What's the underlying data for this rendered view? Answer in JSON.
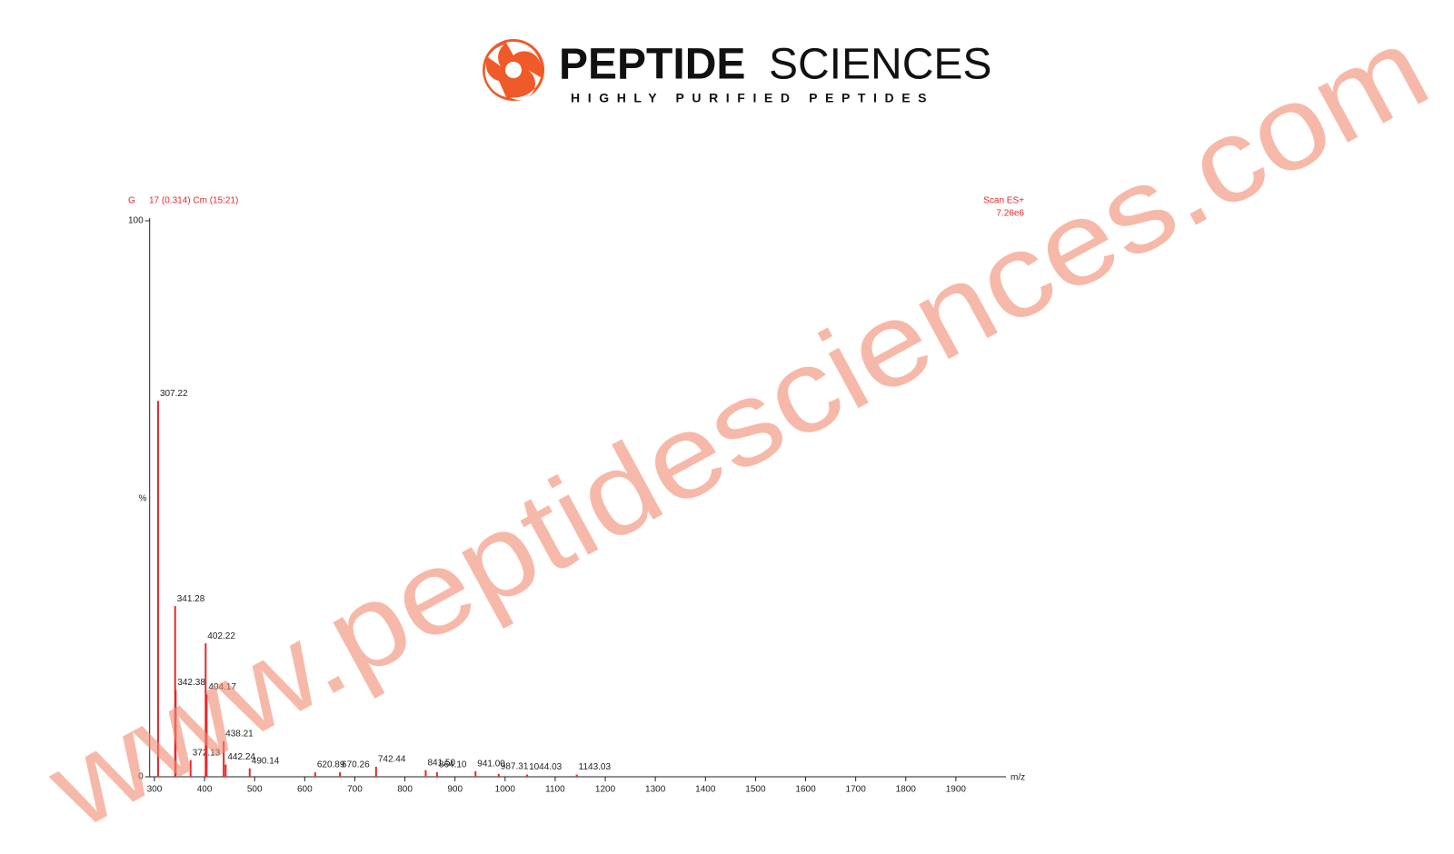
{
  "logo": {
    "brand_bold": "PEPTIDE",
    "brand_light": "SCIENCES",
    "tagline": "HIGHLY PURIFIED PEPTIDES"
  },
  "watermark": "www.peptidesciences.com",
  "chart_data": {
    "type": "stem",
    "sample_label": "G",
    "title": "17 (0.314) Cm (15:21)",
    "scan": "Scan ES+",
    "intensity": "7.26e6",
    "xlabel": "m/z",
    "ylabel": "%",
    "color": "#e8262b",
    "x": [
      307.22,
      341.28,
      342.38,
      372.13,
      402.22,
      404.17,
      438.21,
      442.24,
      490.14,
      620.89,
      670.26,
      742.44,
      841.5,
      864.1,
      941.0,
      987.31,
      1044.03,
      1143.03
    ],
    "x_labels": [
      "307.22",
      "341.28",
      "342.38",
      "372.13",
      "402.22",
      "404.17",
      "438.21",
      "442.24",
      "490.14",
      "620.89",
      "670.26",
      "742.44",
      "841.50",
      "864.10",
      "941.00",
      "987.31",
      "1044.03",
      "1143.03"
    ],
    "values": [
      67.6,
      30.7,
      15.6,
      3,
      24,
      14.8,
      6.4,
      2.2,
      1.5,
      0.8,
      0.8,
      1.8,
      1.2,
      0.8,
      1,
      0.5,
      0.4,
      0.4
    ],
    "xlim": [
      285,
      2000
    ],
    "xticks": [
      300,
      400,
      500,
      600,
      700,
      800,
      900,
      1000,
      1100,
      1200,
      1300,
      1400,
      1500,
      1600,
      1700,
      1800,
      1900
    ],
    "ylim": [
      0,
      100
    ],
    "yticks": [
      0,
      100
    ]
  }
}
